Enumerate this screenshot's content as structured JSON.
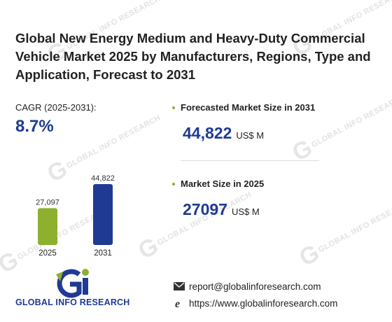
{
  "title": "Global New Energy Medium and Heavy-Duty Commercial Vehicle Market 2025 by Manufacturers, Regions, Type and Application, Forecast to 2031",
  "cagr": {
    "label": "CAGR (2025-2031):",
    "value": "8.7%"
  },
  "forecast": {
    "label": "Forecasted Market Size in 2031",
    "value": "44,822",
    "unit": "US$ M"
  },
  "current": {
    "label": "Market Size in 2025",
    "value": "27097",
    "unit": "US$ M"
  },
  "chart_data": {
    "type": "bar",
    "categories": [
      "2025",
      "2031"
    ],
    "values": [
      27097,
      44822
    ],
    "value_labels": [
      "27,097",
      "44,822"
    ],
    "colors": [
      "#8db02e",
      "#1f3a93"
    ]
  },
  "logo": {
    "text": "GLOBAL INFO RESEARCH",
    "icon": "gi-logo-icon"
  },
  "contact": {
    "email": "report@globalinforesearch.com",
    "website": "https://www.globalinforesearch.com",
    "email_icon": "envelope-icon",
    "web_icon": "browser-e-icon"
  },
  "watermark": "GLOBAL INFO RESEARCH",
  "colors": {
    "accent_blue": "#1f3a93",
    "accent_green": "#8db02e"
  }
}
